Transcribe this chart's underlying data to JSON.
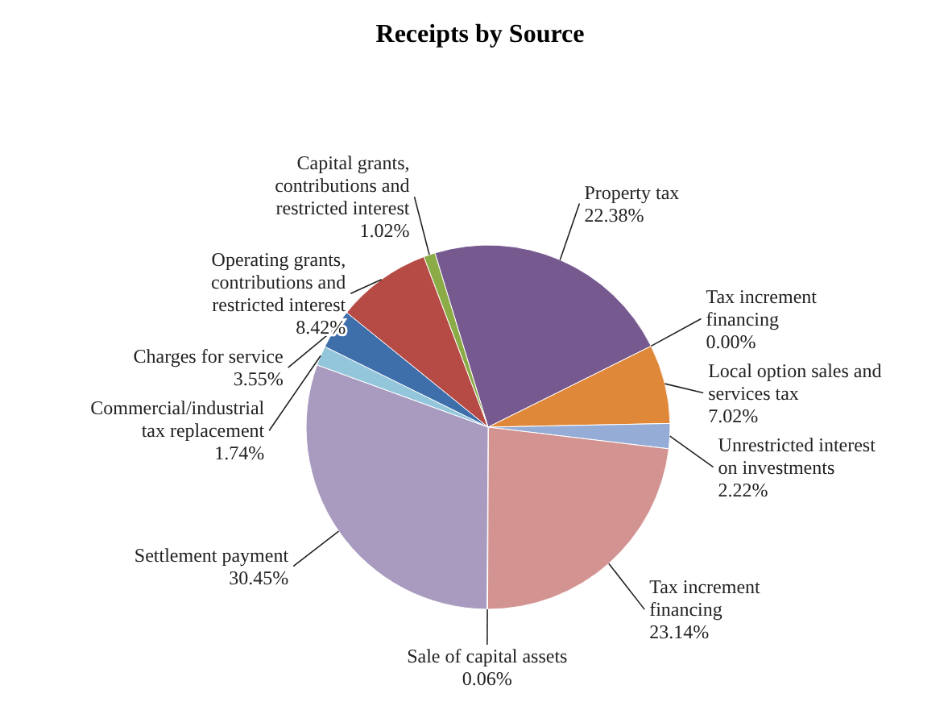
{
  "chart_data": {
    "type": "pie",
    "title": "Receipts by Source",
    "categories": [
      "Property tax",
      "Tax increment financing",
      "Local option sales and services tax",
      "Unrestricted interest on investments",
      "Tax increment financing",
      "Sale of capital assets",
      "Settlement payment",
      "Commercial/industrial tax replacement",
      "Charges for service",
      "Operating grants, contributions and restricted interest",
      "Capital grants, contributions and restricted interest"
    ],
    "values": [
      22.38,
      0.0,
      7.02,
      2.22,
      23.14,
      0.06,
      30.45,
      1.74,
      3.55,
      8.42,
      1.02
    ],
    "colors": [
      "#76598f",
      "#4f81bd",
      "#e0883a",
      "#95add6",
      "#d39391",
      "#6fa0c8",
      "#a99bbf",
      "#93c6db",
      "#3f6fab",
      "#b64a45",
      "#8aab46"
    ],
    "value_labels": [
      "22.38%",
      "0.00%",
      "7.02%",
      "2.22%",
      "23.14%",
      "0.06%",
      "30.45%",
      "1.74%",
      "3.55%",
      "8.42%",
      "1.02%"
    ]
  }
}
